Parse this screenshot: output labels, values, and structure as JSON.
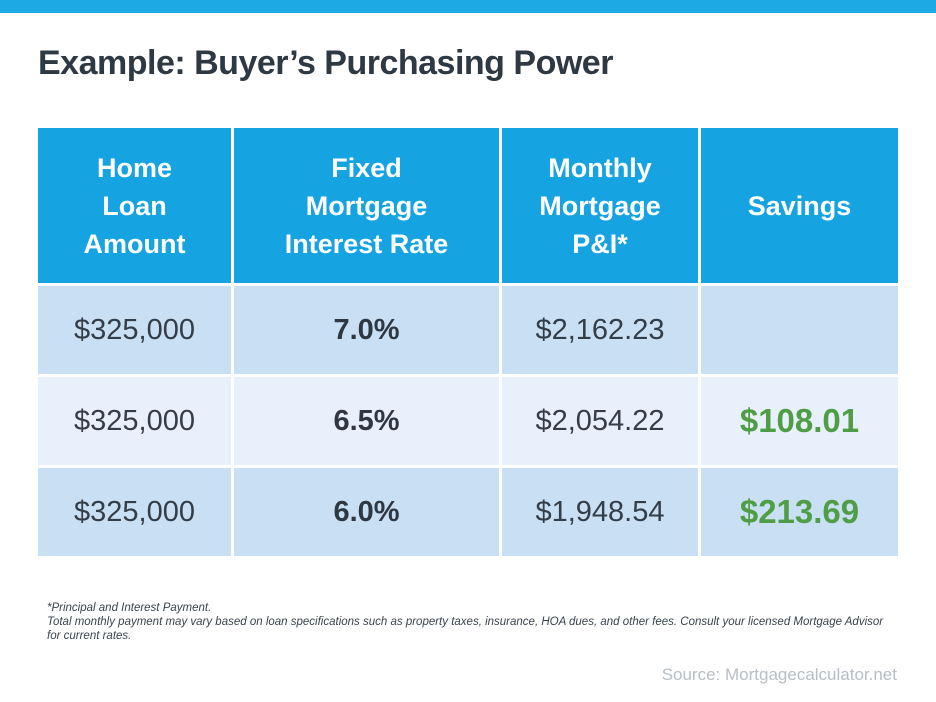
{
  "page": {
    "title": "Example: Buyer’s Purchasing Power",
    "source": "Source: Mortgagecalculator.net",
    "accent_blue": "#1CA9E4",
    "header_blue": "#15A3E1",
    "row_blue": "#C9DFF4",
    "row_blue_light": "#E8F1FB",
    "savings_green": "#4F9D45",
    "text_dark": "#333E48",
    "title_color": "#2E3943",
    "source_gray": "#B7BEC6"
  },
  "table": {
    "header_lines": [
      [
        "Home",
        "Loan",
        "Amount"
      ],
      [
        "Fixed",
        "Mortgage",
        "Interest Rate"
      ],
      [
        "Monthly",
        "Mortgage",
        "P&I*"
      ],
      [
        "Savings"
      ]
    ]
  },
  "footnote": {
    "line1": "*Principal and Interest Payment.",
    "body": "Total monthly payment may vary based on loan specifications such as property taxes, insurance, HOA dues, and other fees. Consult your licensed Mortgage Advisor for current rates."
  },
  "chart_data": {
    "type": "table",
    "title": "Example: Buyer’s Purchasing Power",
    "columns": [
      "Home Loan Amount",
      "Fixed Mortgage Interest Rate",
      "Monthly Mortgage P&I*",
      "Savings"
    ],
    "rows": [
      [
        "$325,000",
        "7.0%",
        "$2,162.23",
        ""
      ],
      [
        "$325,000",
        "6.5%",
        "$2,054.22",
        "$108.01"
      ],
      [
        "$325,000",
        "6.0%",
        "$1,948.54",
        "$213.69"
      ]
    ],
    "loan_amount_numeric": 325000,
    "rates_numeric": [
      7.0,
      6.5,
      6.0
    ],
    "payments_numeric": [
      2162.23,
      2054.22,
      1948.54
    ],
    "savings_numeric": [
      null,
      108.01,
      213.69
    ],
    "source": "Source: Mortgagecalculator.net"
  }
}
